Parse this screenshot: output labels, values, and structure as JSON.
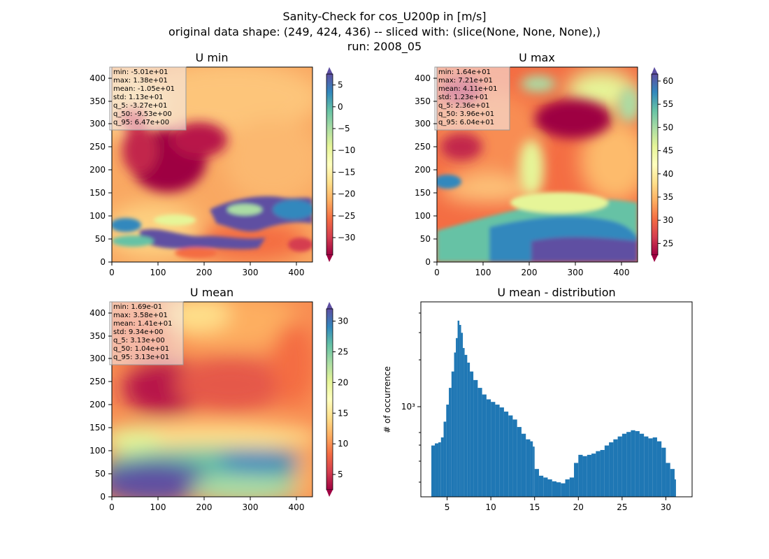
{
  "title": {
    "line1": "Sanity-Check for cos_U200p in [m/s]",
    "line2": "original data shape: (249, 424, 436) -- sliced with: (slice(None, None, None),)",
    "line3": "run: 2008_05"
  },
  "panels": [
    {
      "title": "U min",
      "x_ticks": [
        0,
        100,
        200,
        300,
        400
      ],
      "y_ticks": [
        0,
        50,
        100,
        150,
        200,
        250,
        300,
        350,
        400
      ],
      "stats": [
        "min: -5.01e+01",
        "max: 1.38e+01",
        "mean: -1.05e+01",
        "std: 1.13e+01",
        "q_5: -3.27e+01",
        "q_50: -9.53e+00",
        "q_95: 6.47e+00"
      ],
      "colorbar": {
        "min": -34,
        "max": 7.5,
        "ticks": [
          5,
          0,
          -5,
          -10,
          -15,
          -20,
          -25,
          -30
        ],
        "tick_labels": [
          "5",
          "0",
          "−5",
          "−10",
          "−15",
          "−20",
          "−25",
          "−30"
        ]
      }
    },
    {
      "title": "U max",
      "x_ticks": [
        0,
        100,
        200,
        300,
        400
      ],
      "y_ticks": [
        0,
        50,
        100,
        150,
        200,
        250,
        300,
        350,
        400
      ],
      "stats": [
        "min: 1.64e+01",
        "max: 7.21e+01",
        "mean: 4.11e+01",
        "std: 1.23e+01",
        "q_5: 2.36e+01",
        "q_50: 3.96e+01",
        "q_95: 6.04e+01"
      ],
      "colorbar": {
        "min": 22.5,
        "max": 61.5,
        "ticks": [
          60,
          55,
          50,
          45,
          40,
          35,
          30,
          25
        ],
        "tick_labels": [
          "60",
          "55",
          "50",
          "45",
          "40",
          "35",
          "30",
          "25"
        ]
      }
    },
    {
      "title": "U mean",
      "x_ticks": [
        0,
        100,
        200,
        300,
        400
      ],
      "y_ticks": [
        0,
        50,
        100,
        150,
        200,
        250,
        300,
        350,
        400
      ],
      "stats": [
        "min: 1.69e-01",
        "max: 3.58e+01",
        "mean: 1.41e+01",
        "std: 9.34e+00",
        "q_5: 3.13e+00",
        "q_50: 1.04e+01",
        "q_95: 3.13e+01"
      ],
      "colorbar": {
        "min": 2.5,
        "max": 32,
        "ticks": [
          30,
          25,
          20,
          15,
          10,
          5
        ],
        "tick_labels": [
          "30",
          "25",
          "20",
          "15",
          "10",
          "5"
        ]
      }
    }
  ],
  "colormap": [
    "#9e0142",
    "#d53e4f",
    "#f46d43",
    "#fdae61",
    "#fee08b",
    "#ffffbf",
    "#e6f598",
    "#abdda4",
    "#66c2a5",
    "#3288bd",
    "#5e4fa2"
  ],
  "chart_data": {
    "type": "bar",
    "title": "U mean - distribution",
    "ylabel": "# of occurrence",
    "xlabel": "",
    "yscale": "log",
    "y_tick_label": "10³",
    "x_ticks": [
      5,
      10,
      15,
      20,
      25,
      30
    ],
    "xlim": [
      2,
      33
    ],
    "ylim": [
      240,
      6000
    ],
    "bar_color": "#1f77b4",
    "bin_width": 0.155,
    "bins": [
      {
        "x": 3.2,
        "y": 560
      },
      {
        "x": 3.6,
        "y": 580
      },
      {
        "x": 4.0,
        "y": 590
      },
      {
        "x": 4.3,
        "y": 640
      },
      {
        "x": 4.6,
        "y": 830
      },
      {
        "x": 4.9,
        "y": 1100
      },
      {
        "x": 5.2,
        "y": 1450
      },
      {
        "x": 5.5,
        "y": 1900
      },
      {
        "x": 5.8,
        "y": 2600
      },
      {
        "x": 6.0,
        "y": 3300
      },
      {
        "x": 6.2,
        "y": 4400
      },
      {
        "x": 6.4,
        "y": 4100
      },
      {
        "x": 6.6,
        "y": 3600
      },
      {
        "x": 6.8,
        "y": 2800
      },
      {
        "x": 7.0,
        "y": 2500
      },
      {
        "x": 7.3,
        "y": 2200
      },
      {
        "x": 7.6,
        "y": 1900
      },
      {
        "x": 8.0,
        "y": 1650
      },
      {
        "x": 8.5,
        "y": 1450
      },
      {
        "x": 9.0,
        "y": 1300
      },
      {
        "x": 9.5,
        "y": 1200
      },
      {
        "x": 10.0,
        "y": 1150
      },
      {
        "x": 10.5,
        "y": 1100
      },
      {
        "x": 11.0,
        "y": 1050
      },
      {
        "x": 11.5,
        "y": 980
      },
      {
        "x": 12.0,
        "y": 920
      },
      {
        "x": 12.5,
        "y": 860
      },
      {
        "x": 13.0,
        "y": 760
      },
      {
        "x": 13.5,
        "y": 680
      },
      {
        "x": 14.0,
        "y": 620
      },
      {
        "x": 14.5,
        "y": 600
      },
      {
        "x": 14.8,
        "y": 550
      },
      {
        "x": 15.0,
        "y": 380
      },
      {
        "x": 15.5,
        "y": 340
      },
      {
        "x": 16.0,
        "y": 330
      },
      {
        "x": 16.5,
        "y": 320
      },
      {
        "x": 17.0,
        "y": 310
      },
      {
        "x": 17.5,
        "y": 305
      },
      {
        "x": 18.0,
        "y": 300
      },
      {
        "x": 18.5,
        "y": 320
      },
      {
        "x": 19.0,
        "y": 330
      },
      {
        "x": 19.5,
        "y": 420
      },
      {
        "x": 20.0,
        "y": 480
      },
      {
        "x": 20.5,
        "y": 470
      },
      {
        "x": 21.0,
        "y": 480
      },
      {
        "x": 21.5,
        "y": 490
      },
      {
        "x": 22.0,
        "y": 510
      },
      {
        "x": 22.5,
        "y": 520
      },
      {
        "x": 23.0,
        "y": 560
      },
      {
        "x": 23.5,
        "y": 590
      },
      {
        "x": 24.0,
        "y": 620
      },
      {
        "x": 24.5,
        "y": 650
      },
      {
        "x": 25.0,
        "y": 680
      },
      {
        "x": 25.5,
        "y": 700
      },
      {
        "x": 26.0,
        "y": 720
      },
      {
        "x": 26.5,
        "y": 710
      },
      {
        "x": 27.0,
        "y": 680
      },
      {
        "x": 27.5,
        "y": 650
      },
      {
        "x": 28.0,
        "y": 630
      },
      {
        "x": 28.5,
        "y": 640
      },
      {
        "x": 29.0,
        "y": 600
      },
      {
        "x": 29.5,
        "y": 540
      },
      {
        "x": 30.0,
        "y": 420
      },
      {
        "x": 30.5,
        "y": 380
      },
      {
        "x": 31.0,
        "y": 320
      }
    ]
  }
}
